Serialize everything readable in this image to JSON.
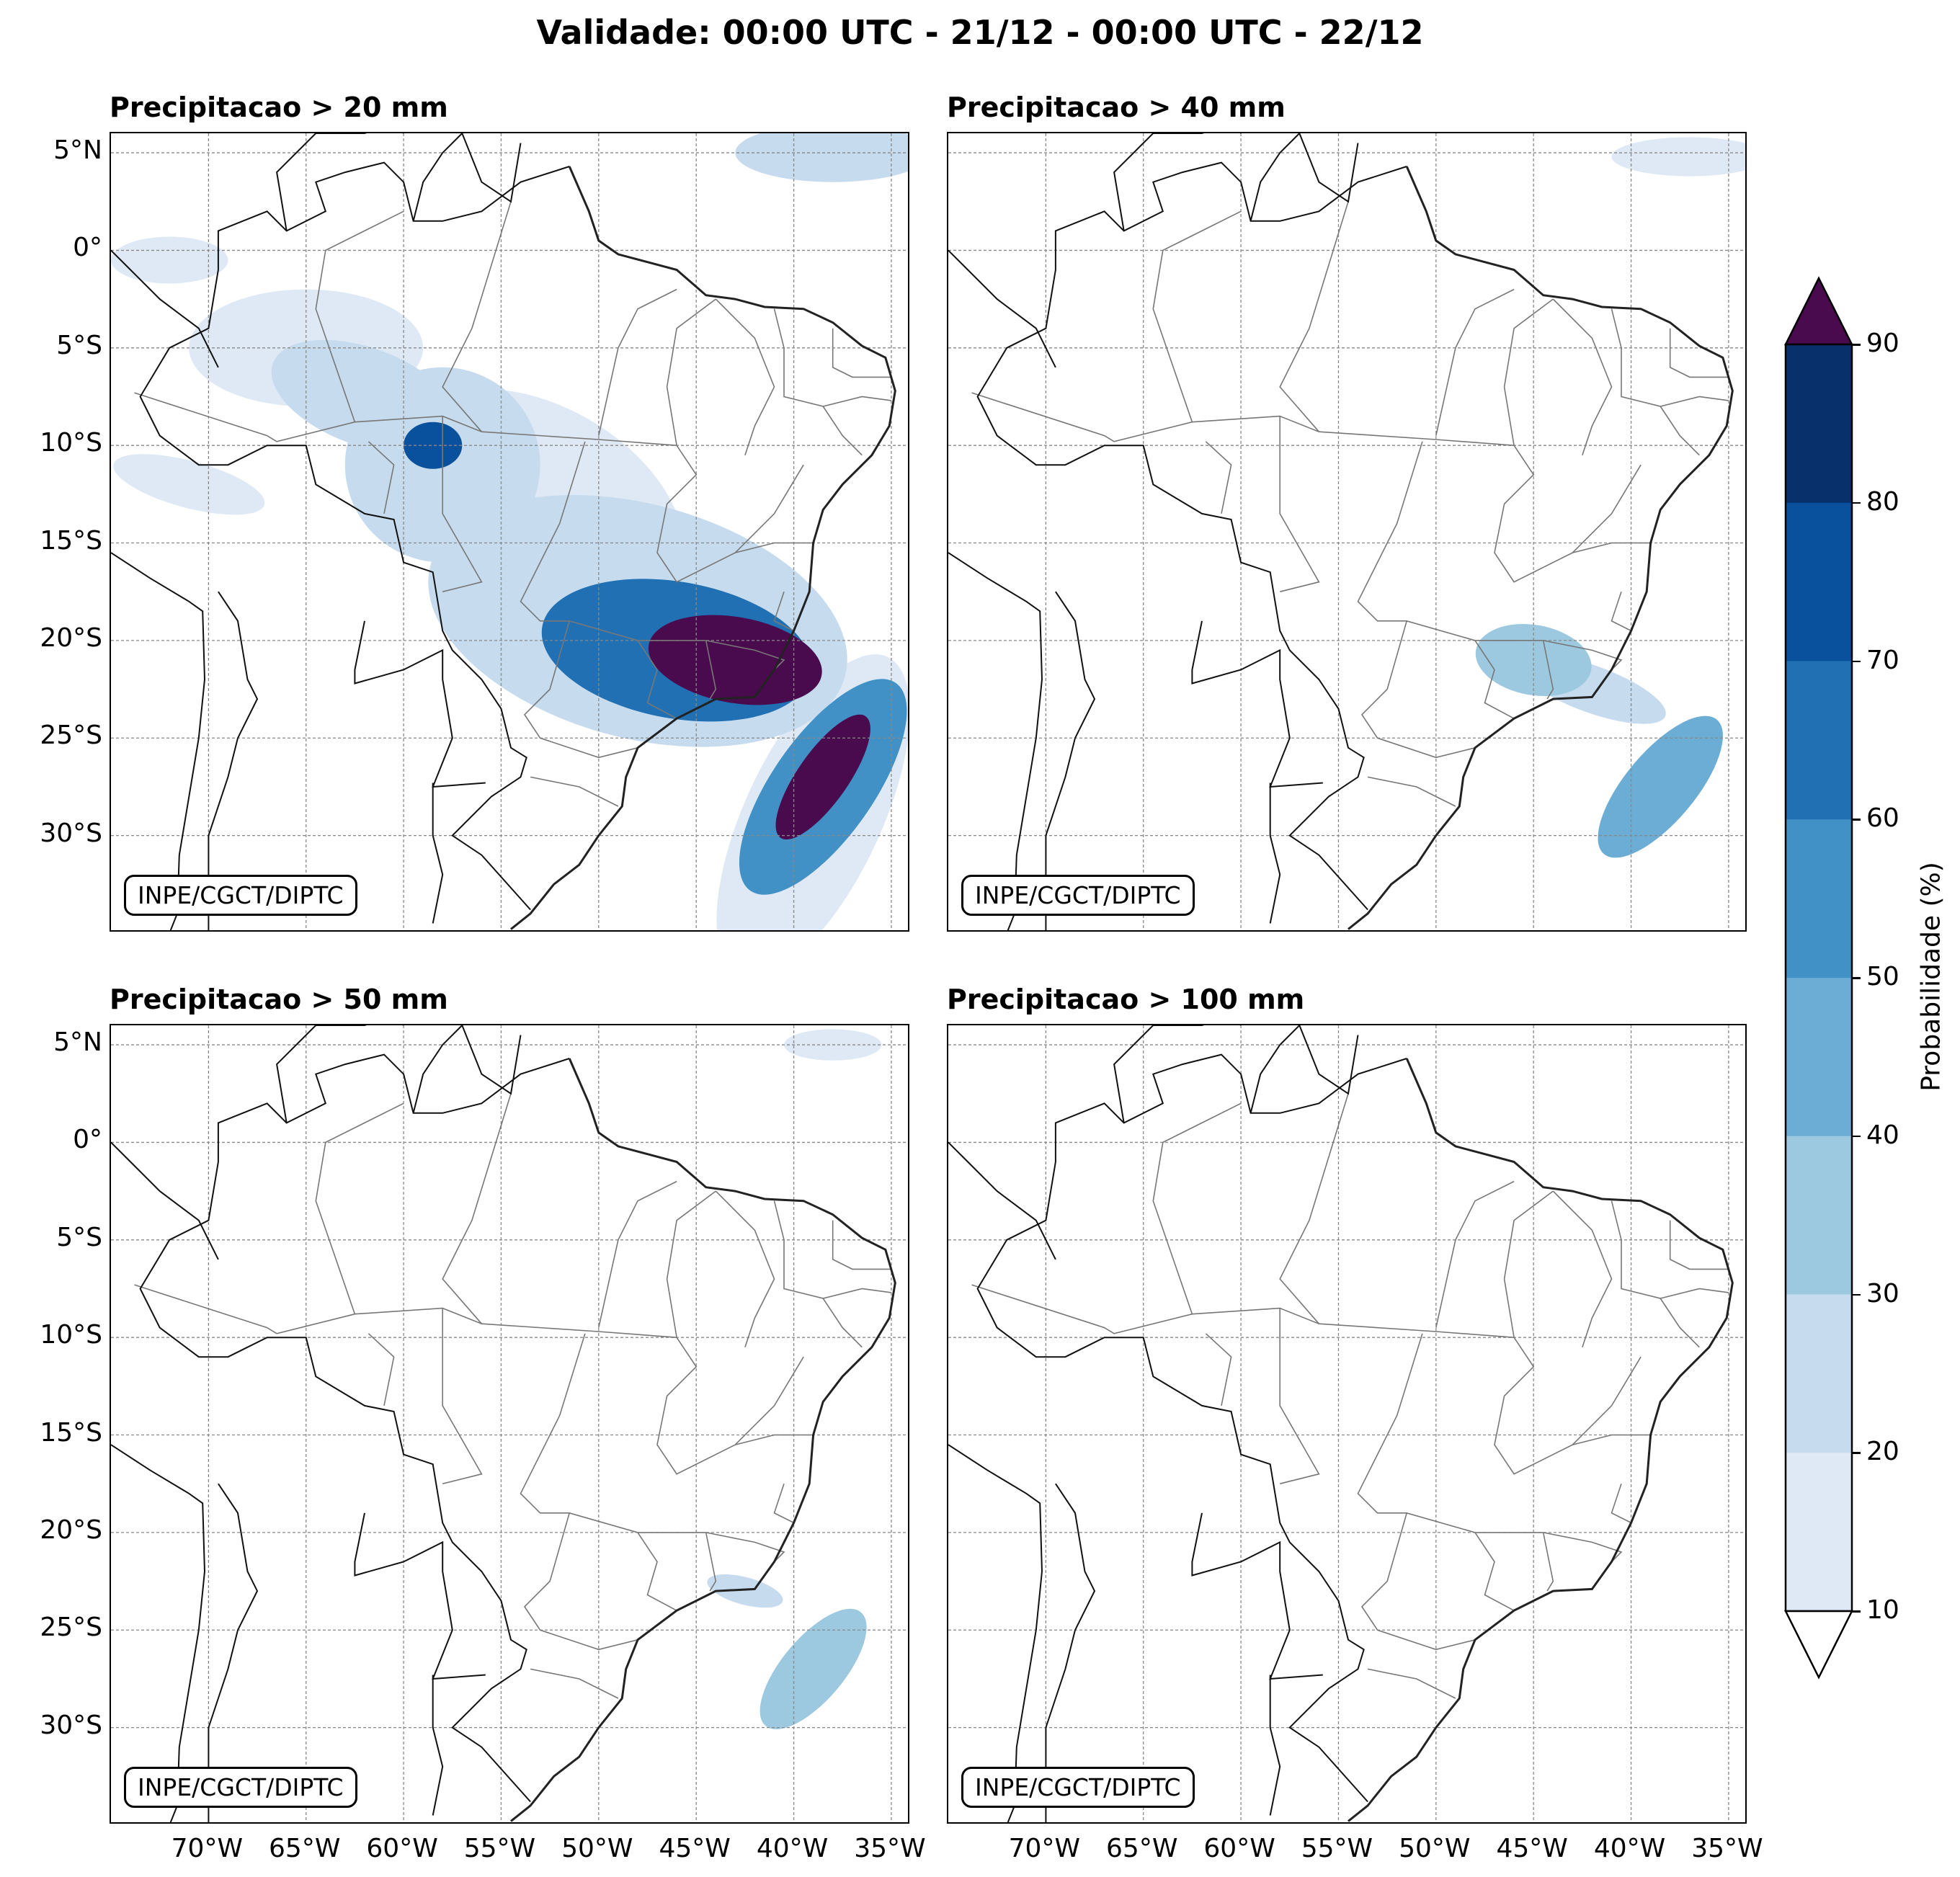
{
  "title": "Validade: 00:00 UTC - 21/12 - 00:00 UTC - 22/12",
  "credit": "INPE/CGCT/DIPTC",
  "panels": [
    {
      "id": "p20",
      "title": "Precipitacao > 20 mm"
    },
    {
      "id": "p40",
      "title": "Precipitacao > 40 mm"
    },
    {
      "id": "p50",
      "title": "Precipitacao > 50 mm"
    },
    {
      "id": "p100",
      "title": "Precipitacao > 100 mm"
    }
  ],
  "axes": {
    "lat_labels": [
      "5°N",
      "0°",
      "5°S",
      "10°S",
      "15°S",
      "20°S",
      "25°S",
      "30°S"
    ],
    "lon_labels": [
      "70°W",
      "65°W",
      "60°W",
      "55°W",
      "50°W",
      "45°W",
      "40°W",
      "35°W"
    ],
    "lat_values": [
      5,
      0,
      -5,
      -10,
      -15,
      -20,
      -25,
      -30
    ],
    "lon_values": [
      -70,
      -65,
      -60,
      -55,
      -50,
      -45,
      -40,
      -35
    ],
    "lat_range": [
      -35,
      6
    ],
    "lon_range": [
      -75,
      -34
    ]
  },
  "colorbar": {
    "label": "Probabilidade (%)",
    "ticks": [
      "10",
      "20",
      "30",
      "40",
      "50",
      "60",
      "70",
      "80",
      "90"
    ],
    "levels": [
      10,
      20,
      30,
      40,
      50,
      60,
      70,
      80,
      90
    ],
    "colors": [
      "#dee9f5",
      "#c6dbee",
      "#9dc9e0",
      "#6badd5",
      "#4291c6",
      "#2170b4",
      "#09519c",
      "#08306b"
    ],
    "over_color": "#4a0a4e",
    "under_color": "#ffffff"
  },
  "chart_data": {
    "type": "heatmap",
    "description_units": "probability (%) of 24h precipitation exceeding threshold",
    "fields": [
      {
        "panel": "p20",
        "blobs": [
          {
            "lon": -43,
            "lat": -21,
            "rx": 4.5,
            "ry": 2.2,
            "rot": -10,
            "p": 95
          },
          {
            "lon": -46,
            "lat": -20.5,
            "rx": 7,
            "ry": 3.5,
            "rot": -10,
            "p": 60
          },
          {
            "lon": -48,
            "lat": -19,
            "rx": 11,
            "ry": 6,
            "rot": -15,
            "p": 25
          },
          {
            "lon": -38.5,
            "lat": -27,
            "rx": 3.8,
            "ry": 1.3,
            "rot": 55,
            "p": 95
          },
          {
            "lon": -38.5,
            "lat": -27.5,
            "rx": 6.5,
            "ry": 2.6,
            "rot": 55,
            "p": 55
          },
          {
            "lon": -39,
            "lat": -29,
            "rx": 9,
            "ry": 3.5,
            "rot": 65,
            "p": 15
          },
          {
            "lon": -58.5,
            "lat": -10,
            "rx": 1.5,
            "ry": 1.2,
            "rot": 0,
            "p": 70
          },
          {
            "lon": -58,
            "lat": -11,
            "rx": 5,
            "ry": 5,
            "rot": 20,
            "p": 25
          },
          {
            "lon": -62,
            "lat": -7.5,
            "rx": 5,
            "ry": 2.5,
            "rot": -20,
            "p": 25
          },
          {
            "lon": -53,
            "lat": -13,
            "rx": 8,
            "ry": 5,
            "rot": -30,
            "p": 12
          },
          {
            "lon": -65,
            "lat": -5,
            "rx": 6,
            "ry": 3,
            "rot": 0,
            "p": 12
          },
          {
            "lon": -71,
            "lat": -12,
            "rx": 4,
            "ry": 1.2,
            "rot": -15,
            "p": 15
          },
          {
            "lon": -38,
            "lat": 5,
            "rx": 5,
            "ry": 1.5,
            "rot": 0,
            "p": 25
          },
          {
            "lon": -72,
            "lat": -0.5,
            "rx": 3,
            "ry": 1.2,
            "rot": 0,
            "p": 15
          }
        ]
      },
      {
        "panel": "p40",
        "blobs": [
          {
            "lon": -45,
            "lat": -21,
            "rx": 3,
            "ry": 1.8,
            "rot": -10,
            "p": 35
          },
          {
            "lon": -42,
            "lat": -22.5,
            "rx": 4,
            "ry": 1.2,
            "rot": -20,
            "p": 25
          },
          {
            "lon": -38.5,
            "lat": -27.5,
            "rx": 4.5,
            "ry": 1.8,
            "rot": 50,
            "p": 40
          },
          {
            "lon": -37,
            "lat": 4.8,
            "rx": 4,
            "ry": 1,
            "rot": 0,
            "p": 12
          }
        ]
      },
      {
        "panel": "p50",
        "blobs": [
          {
            "lon": -39,
            "lat": -27,
            "rx": 3.8,
            "ry": 1.6,
            "rot": 50,
            "p": 30
          },
          {
            "lon": -42.5,
            "lat": -23,
            "rx": 2,
            "ry": 0.7,
            "rot": -15,
            "p": 20
          },
          {
            "lon": -38,
            "lat": 5,
            "rx": 2.5,
            "ry": 0.8,
            "rot": 0,
            "p": 12
          }
        ]
      },
      {
        "panel": "p100",
        "blobs": []
      }
    ]
  }
}
